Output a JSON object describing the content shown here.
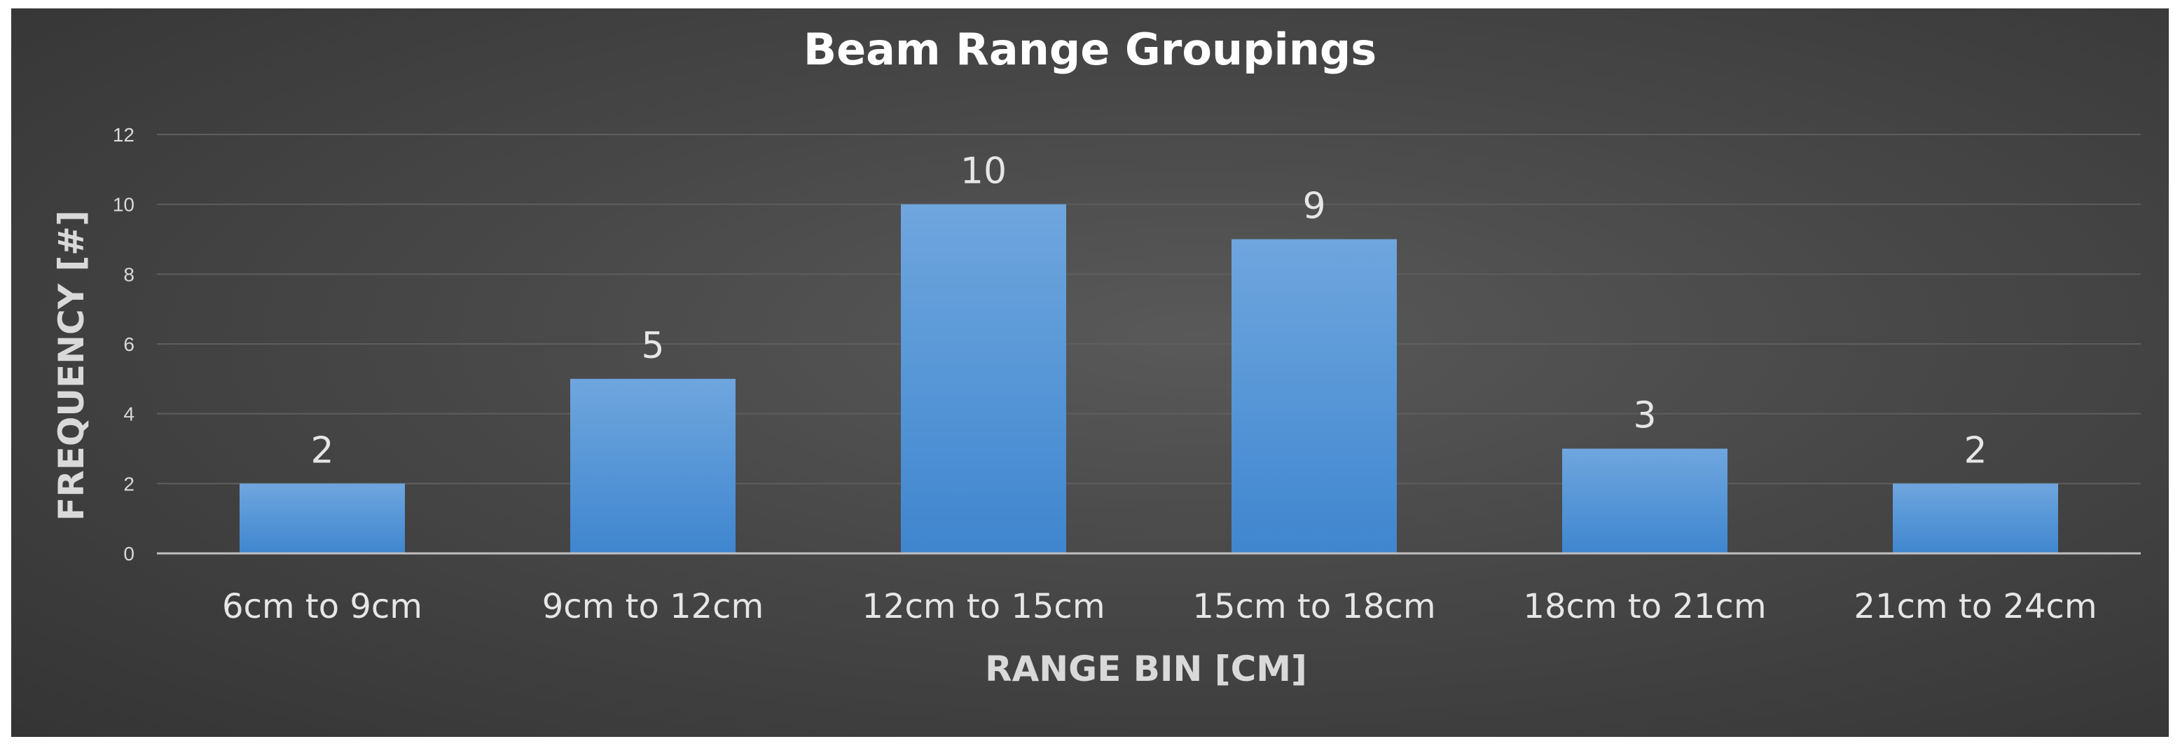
{
  "chart_data": {
    "type": "bar",
    "title": "Beam Range Groupings",
    "xlabel": "RANGE BIN [CM]",
    "ylabel": "FREQUENCY [#]",
    "categories": [
      "6cm to 9cm",
      "9cm to 12cm",
      "12cm to 15cm",
      "15cm to 18cm",
      "18cm to 21cm",
      "21cm to 24cm"
    ],
    "values": [
      2,
      5,
      10,
      9,
      3,
      2
    ],
    "data_labels": [
      "2",
      "5",
      "10",
      "9",
      "3",
      "2"
    ],
    "ylim": [
      0,
      12
    ],
    "yticks": [
      "0",
      "2",
      "4",
      "6",
      "8",
      "10",
      "12"
    ],
    "grid": true,
    "legend": "none",
    "colors": {
      "bar_top": "#6fa6de",
      "bar_bottom": "#3f86cf",
      "grid": "#5e5e5e",
      "axis": "#bfbfbf"
    }
  }
}
